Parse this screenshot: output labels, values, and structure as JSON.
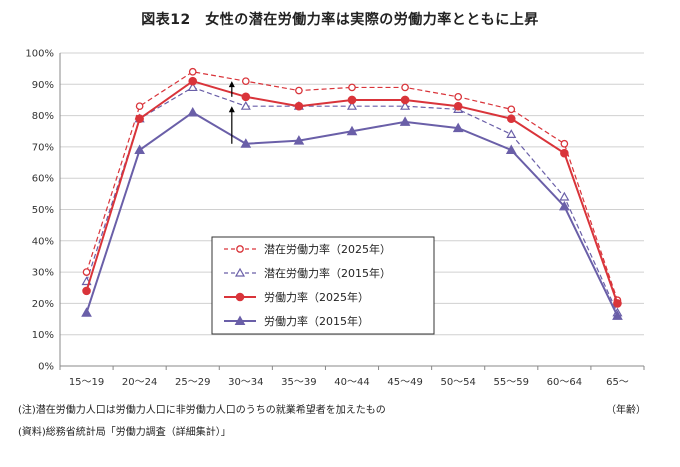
{
  "chart_data": {
    "type": "line",
    "title": "図表12　女性の潜在労働力率は実際の労働力率とともに上昇",
    "x_unit": "（年齢）",
    "categories": [
      "15～19",
      "20～24",
      "25～29",
      "30～34",
      "35～39",
      "40～44",
      "45～49",
      "50～54",
      "55～59",
      "60～64",
      "65～"
    ],
    "y_ticks": [
      "0%",
      "10%",
      "20%",
      "30%",
      "40%",
      "50%",
      "60%",
      "70%",
      "80%",
      "90%",
      "100%"
    ],
    "ylim": [
      0,
      100
    ],
    "grid": true,
    "legend_position": "center-left",
    "series": [
      {
        "name": "潜在労働力率（2025年）",
        "color": "#d9343a",
        "style": "dashed",
        "marker": "circle-open",
        "values": [
          30,
          83,
          94,
          91,
          88,
          89,
          89,
          86,
          82,
          71,
          21
        ]
      },
      {
        "name": "潜在労働力率（2015年）",
        "color": "#6a5fa8",
        "style": "dashed",
        "marker": "triangle-open",
        "values": [
          27,
          79,
          89,
          83,
          83,
          83,
          83,
          82,
          74,
          54,
          17
        ]
      },
      {
        "name": "労働力率（2025年）",
        "color": "#d9343a",
        "style": "solid",
        "marker": "circle-filled",
        "values": [
          24,
          79,
          91,
          86,
          83,
          85,
          85,
          83,
          79,
          68,
          20
        ]
      },
      {
        "name": "労働力率（2015年）",
        "color": "#6a5fa8",
        "style": "solid",
        "marker": "triangle-filled",
        "values": [
          17,
          69,
          81,
          71,
          72,
          75,
          78,
          76,
          69,
          51,
          16
        ]
      }
    ],
    "annotations": [
      {
        "type": "arrow",
        "category": "30～34",
        "from": 86,
        "to": 91
      },
      {
        "type": "arrow",
        "category": "30～34",
        "from": 71,
        "to": 83
      }
    ]
  },
  "notes": [
    "(注)潜在労働力人口は労働力人口に非労働力人口のうちの就業希望者を加えたもの",
    "(資料)総務省統計局「労働力調査（詳細集計）」"
  ]
}
